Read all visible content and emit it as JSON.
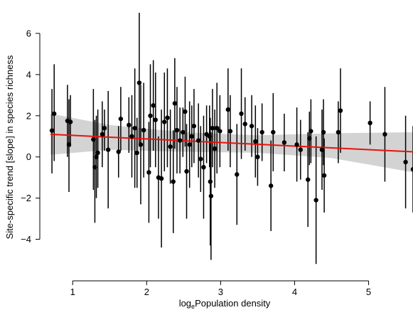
{
  "chart_data": {
    "type": "scatter",
    "title": "",
    "xlabel_prefix": "log",
    "xlabel_subscript": "e",
    "xlabel_suffix": "Population density",
    "ylabel": "Site-specific trend [slope] in species richness",
    "xlim": [
      0.7,
      5.6
    ],
    "ylim": [
      -5.5,
      7.0
    ],
    "xticks": [
      1,
      2,
      3,
      4,
      5
    ],
    "yticks": [
      -4,
      -2,
      0,
      2,
      4,
      6
    ],
    "ytick_labels": [
      "−4",
      "−2",
      "0",
      "2",
      "4",
      "6"
    ],
    "grid": false,
    "legend": "none",
    "colors": {
      "points": "#000000",
      "error_bars": "#000000",
      "trend_line": "#e8120c",
      "confidence_band": "#d3d3d3"
    },
    "trend_line": {
      "x": [
        0.7,
        5.6
      ],
      "y": [
        1.1,
        0.25
      ]
    },
    "confidence_band": {
      "x": [
        0.7,
        1.5,
        2.5,
        3.5,
        4.5,
        5.6
      ],
      "upper": [
        2.1,
        1.55,
        1.2,
        1.05,
        1.15,
        1.2
      ],
      "lower": [
        0.1,
        0.35,
        0.25,
        0.2,
        -0.05,
        -0.75
      ]
    },
    "points": [
      {
        "x": 0.72,
        "y": 1.28,
        "lo": -0.8,
        "hi": 3.3
      },
      {
        "x": 0.75,
        "y": 2.1,
        "lo": -0.2,
        "hi": 4.5
      },
      {
        "x": 0.93,
        "y": 1.75,
        "lo": 0.0,
        "hi": 3.5
      },
      {
        "x": 0.95,
        "y": 0.6,
        "lo": -1.7,
        "hi": 2.8
      },
      {
        "x": 0.97,
        "y": 1.7,
        "lo": 0.5,
        "hi": 3.0
      },
      {
        "x": 1.28,
        "y": 0.85,
        "lo": -1.6,
        "hi": 3.3
      },
      {
        "x": 1.3,
        "y": -0.5,
        "lo": -3.2,
        "hi": 1.8
      },
      {
        "x": 1.32,
        "y": 0.0,
        "lo": -2.0,
        "hi": 2.0
      },
      {
        "x": 1.34,
        "y": 0.2,
        "lo": -1.5,
        "hi": 2.3
      },
      {
        "x": 1.4,
        "y": 1.1,
        "lo": -0.5,
        "hi": 2.7
      },
      {
        "x": 1.43,
        "y": 1.4,
        "lo": 0.3,
        "hi": 2.3
      },
      {
        "x": 1.48,
        "y": 0.35,
        "lo": -2.5,
        "hi": 3.2
      },
      {
        "x": 1.62,
        "y": 0.25,
        "lo": -1.0,
        "hi": 1.5
      },
      {
        "x": 1.65,
        "y": 1.85,
        "lo": 0.3,
        "hi": 3.4
      },
      {
        "x": 1.76,
        "y": 1.55,
        "lo": 0.2,
        "hi": 2.9
      },
      {
        "x": 1.8,
        "y": 1.0,
        "lo": -1.0,
        "hi": 3.0
      },
      {
        "x": 1.84,
        "y": 1.4,
        "lo": -1.5,
        "hi": 4.3
      },
      {
        "x": 1.87,
        "y": 0.2,
        "lo": -1.5,
        "hi": 1.9
      },
      {
        "x": 1.9,
        "y": 3.6,
        "lo": 0.5,
        "hi": 7.0
      },
      {
        "x": 1.92,
        "y": 0.6,
        "lo": -2.3,
        "hi": 3.5
      },
      {
        "x": 1.96,
        "y": 1.3,
        "lo": -1.0,
        "hi": 3.6
      },
      {
        "x": 2.03,
        "y": -0.75,
        "lo": -3.2,
        "hi": 1.7
      },
      {
        "x": 2.05,
        "y": 2.0,
        "lo": -0.5,
        "hi": 4.5
      },
      {
        "x": 2.09,
        "y": 2.5,
        "lo": 0.3,
        "hi": 4.7
      },
      {
        "x": 2.12,
        "y": 1.8,
        "lo": -0.5,
        "hi": 4.1
      },
      {
        "x": 2.16,
        "y": -1.0,
        "lo": -3.0,
        "hi": 1.0
      },
      {
        "x": 2.2,
        "y": -1.05,
        "lo": -4.4,
        "hi": 2.3
      },
      {
        "x": 2.24,
        "y": 1.7,
        "lo": -0.7,
        "hi": 4.1
      },
      {
        "x": 2.28,
        "y": 1.9,
        "lo": -0.5,
        "hi": 4.3
      },
      {
        "x": 2.32,
        "y": 0.5,
        "lo": -1.3,
        "hi": 2.3
      },
      {
        "x": 2.36,
        "y": -1.2,
        "lo": -3.7,
        "hi": 1.3
      },
      {
        "x": 2.38,
        "y": 2.6,
        "lo": 0.4,
        "hi": 4.8
      },
      {
        "x": 2.41,
        "y": 1.3,
        "lo": -0.8,
        "hi": 3.4
      },
      {
        "x": 2.45,
        "y": 0.8,
        "lo": -0.8,
        "hi": 2.4
      },
      {
        "x": 2.49,
        "y": 1.2,
        "lo": 0.0,
        "hi": 2.4
      },
      {
        "x": 2.52,
        "y": 2.2,
        "lo": 0.5,
        "hi": 3.9
      },
      {
        "x": 2.54,
        "y": -0.7,
        "lo": -3.0,
        "hi": 1.6
      },
      {
        "x": 2.58,
        "y": 0.6,
        "lo": -1.5,
        "hi": 2.7
      },
      {
        "x": 2.61,
        "y": 1.0,
        "lo": -0.5,
        "hi": 2.5
      },
      {
        "x": 2.64,
        "y": 1.5,
        "lo": -0.3,
        "hi": 3.3
      },
      {
        "x": 2.7,
        "y": 0.8,
        "lo": -1.0,
        "hi": 2.6
      },
      {
        "x": 2.73,
        "y": -0.1,
        "lo": -1.7,
        "hi": 1.5
      },
      {
        "x": 2.77,
        "y": -0.5,
        "lo": -3.0,
        "hi": 2.0
      },
      {
        "x": 2.81,
        "y": 1.1,
        "lo": -0.3,
        "hi": 2.5
      },
      {
        "x": 2.85,
        "y": 1.0,
        "lo": -0.5,
        "hi": 2.5
      },
      {
        "x": 2.86,
        "y": -1.2,
        "lo": -4.3,
        "hi": 1.9
      },
      {
        "x": 2.87,
        "y": -1.9,
        "lo": -5.0,
        "hi": 1.2
      },
      {
        "x": 2.89,
        "y": 1.4,
        "lo": -0.5,
        "hi": 3.3
      },
      {
        "x": 2.92,
        "y": 0.4,
        "lo": -1.5,
        "hi": 2.3
      },
      {
        "x": 2.95,
        "y": 1.4,
        "lo": -0.8,
        "hi": 3.6
      },
      {
        "x": 2.99,
        "y": 1.25,
        "lo": -0.5,
        "hi": 3.0
      },
      {
        "x": 3.1,
        "y": 2.3,
        "lo": 0.3,
        "hi": 4.3
      },
      {
        "x": 3.13,
        "y": 1.25,
        "lo": -0.5,
        "hi": 3.0
      },
      {
        "x": 3.22,
        "y": -0.85,
        "lo": -3.3,
        "hi": 1.6
      },
      {
        "x": 3.28,
        "y": 2.1,
        "lo": -0.1,
        "hi": 4.3
      },
      {
        "x": 3.33,
        "y": 1.6,
        "lo": 0.3,
        "hi": 2.9
      },
      {
        "x": 3.42,
        "y": 1.5,
        "lo": 0.0,
        "hi": 3.0
      },
      {
        "x": 3.47,
        "y": 0.75,
        "lo": -1.0,
        "hi": 2.5
      },
      {
        "x": 3.5,
        "y": 0.0,
        "lo": -1.4,
        "hi": 1.4
      },
      {
        "x": 3.56,
        "y": 1.2,
        "lo": -0.2,
        "hi": 2.6
      },
      {
        "x": 3.68,
        "y": -1.4,
        "lo": -3.6,
        "hi": 0.8
      },
      {
        "x": 3.71,
        "y": 1.2,
        "lo": -0.7,
        "hi": 3.1
      },
      {
        "x": 3.86,
        "y": 0.7,
        "lo": -0.7,
        "hi": 2.1
      },
      {
        "x": 4.03,
        "y": 0.6,
        "lo": -1.2,
        "hi": 2.4
      },
      {
        "x": 4.08,
        "y": 0.35,
        "lo": -1.1,
        "hi": 1.8
      },
      {
        "x": 4.18,
        "y": -1.1,
        "lo": -3.4,
        "hi": 1.2
      },
      {
        "x": 4.2,
        "y": 0.9,
        "lo": -0.4,
        "hi": 2.2
      },
      {
        "x": 4.22,
        "y": 1.25,
        "lo": -0.3,
        "hi": 2.8
      },
      {
        "x": 4.29,
        "y": -2.1,
        "lo": -5.2,
        "hi": 1.0
      },
      {
        "x": 4.37,
        "y": 0.35,
        "lo": -1.6,
        "hi": 2.3
      },
      {
        "x": 4.39,
        "y": 1.2,
        "lo": -0.4,
        "hi": 2.8
      },
      {
        "x": 4.4,
        "y": -0.9,
        "lo": -2.7,
        "hi": 0.9
      },
      {
        "x": 4.59,
        "y": 1.2,
        "lo": -0.3,
        "hi": 2.7
      },
      {
        "x": 4.62,
        "y": 2.25,
        "lo": 0.2,
        "hi": 4.3
      },
      {
        "x": 5.02,
        "y": 1.65,
        "lo": 0.6,
        "hi": 2.7
      },
      {
        "x": 5.22,
        "y": 1.1,
        "lo": -1.2,
        "hi": 3.4
      },
      {
        "x": 5.5,
        "y": -0.25,
        "lo": -2.5,
        "hi": 2.0
      },
      {
        "x": 5.6,
        "y": -0.6,
        "lo": -2.7,
        "hi": 1.5
      }
    ]
  }
}
